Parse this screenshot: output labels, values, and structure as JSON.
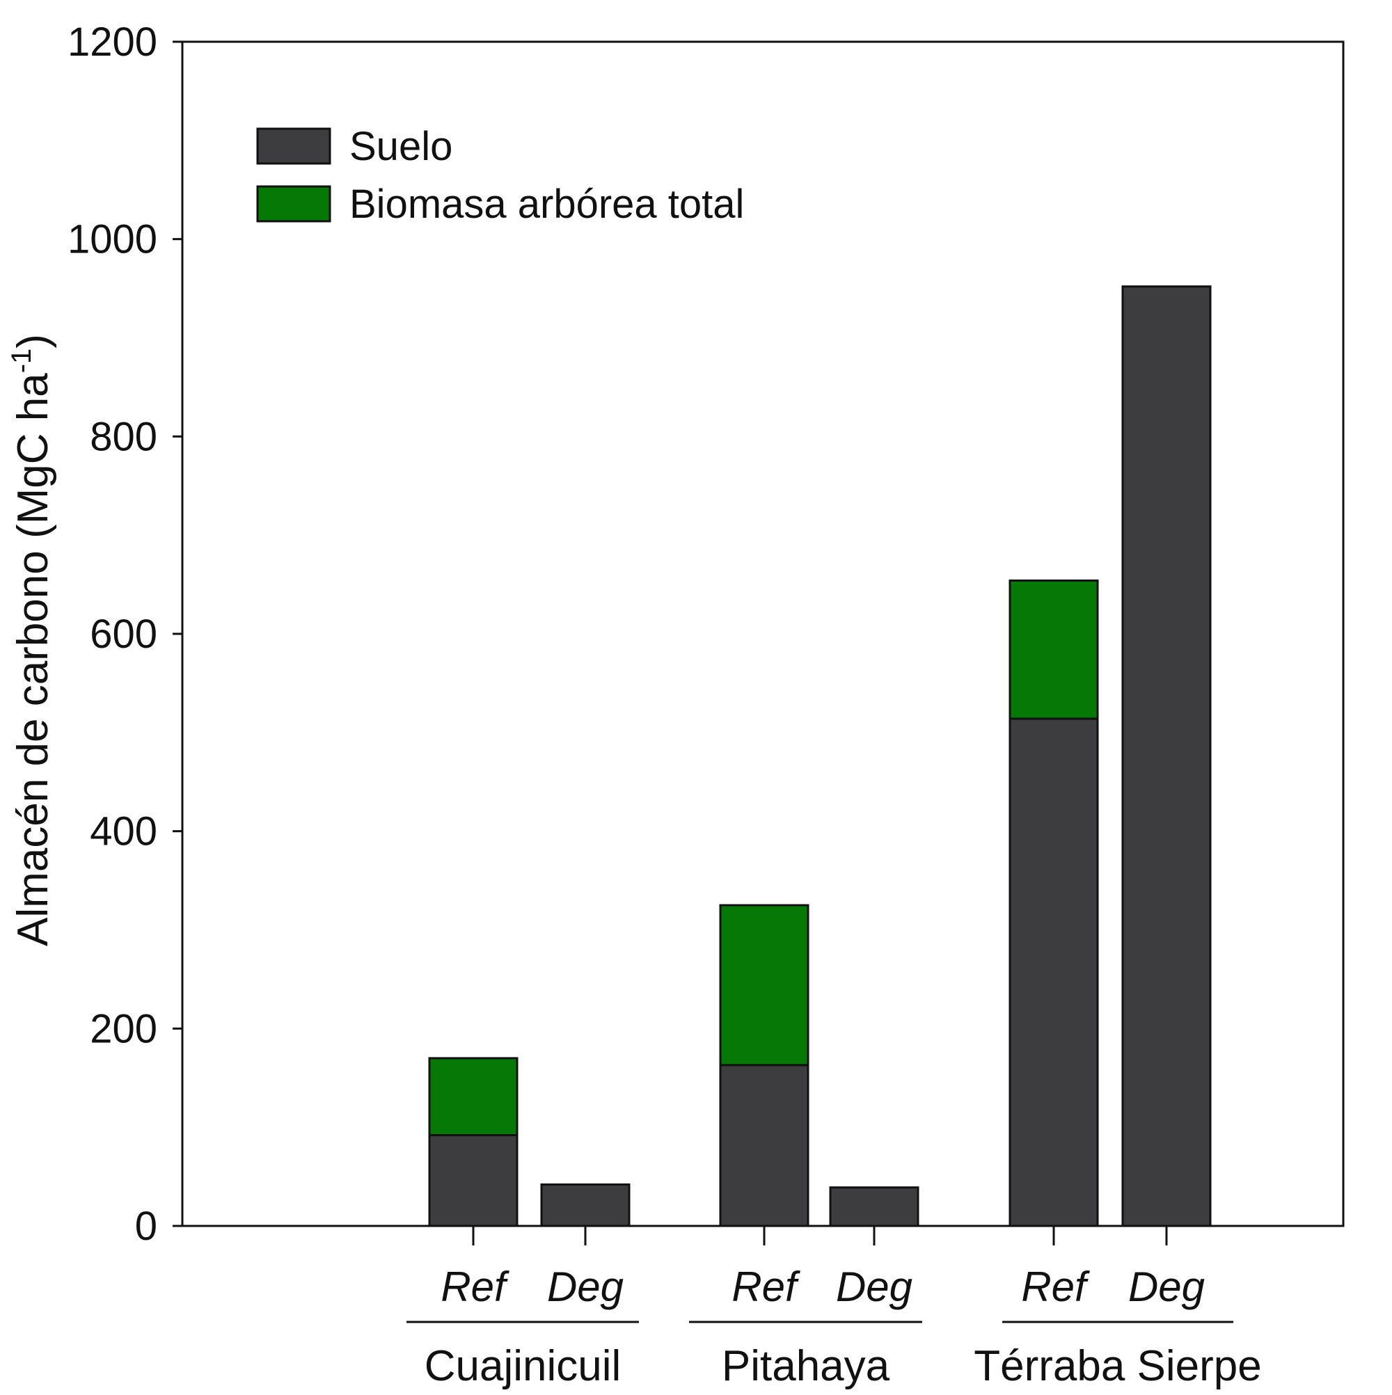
{
  "chart_data": {
    "type": "bar",
    "stacked": true,
    "title": "",
    "ylabel": "Almacén de carbono (MgC ha",
    "ylabel_superscript": "-1",
    "ylabel_suffix": ")",
    "ylim": [
      0,
      1200
    ],
    "yticks": [
      0,
      200,
      400,
      600,
      800,
      1000,
      1200
    ],
    "grid": false,
    "legend_position": "top-left",
    "groups": [
      {
        "name": "Cuajinicuil",
        "categories": [
          "Ref",
          "Deg"
        ]
      },
      {
        "name": "Pitahaya",
        "categories": [
          "Ref",
          "Deg"
        ]
      },
      {
        "name": "Térraba Sierpe",
        "categories": [
          "Ref",
          "Deg"
        ]
      }
    ],
    "categories": [
      "Ref",
      "Deg",
      "Ref",
      "Deg",
      "Ref",
      "Deg"
    ],
    "series": [
      {
        "name": "Suelo",
        "color": "#3d3d3f",
        "values": [
          92,
          42,
          163,
          39,
          514,
          952
        ]
      },
      {
        "name": "Biomasa arbórea total",
        "color": "#067806",
        "values": [
          78,
          0,
          162,
          0,
          140,
          0
        ]
      }
    ]
  }
}
